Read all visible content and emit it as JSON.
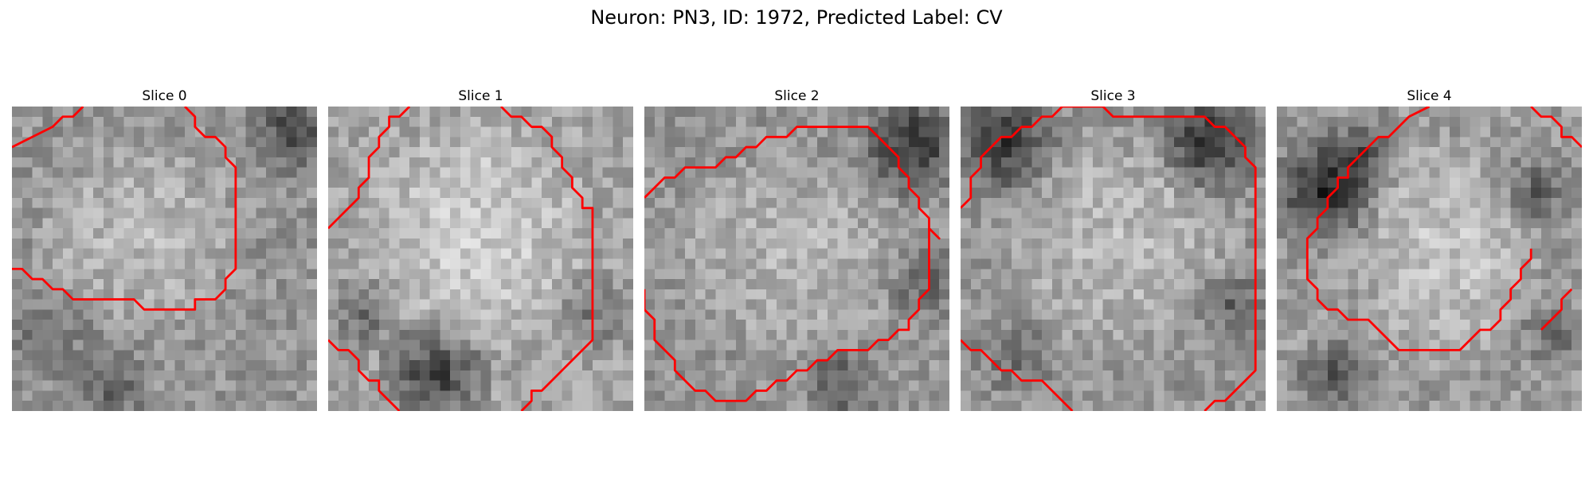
{
  "figure": {
    "title": "Neuron: PN3, ID: 1972, Predicted Label: CV"
  },
  "panels": [
    {
      "title": "Slice 0"
    },
    {
      "title": "Slice 1"
    },
    {
      "title": "Slice 2"
    },
    {
      "title": "Slice 3"
    },
    {
      "title": "Slice 4"
    }
  ],
  "colors": {
    "contour": "#ff0000",
    "background": "#ffffff"
  }
}
